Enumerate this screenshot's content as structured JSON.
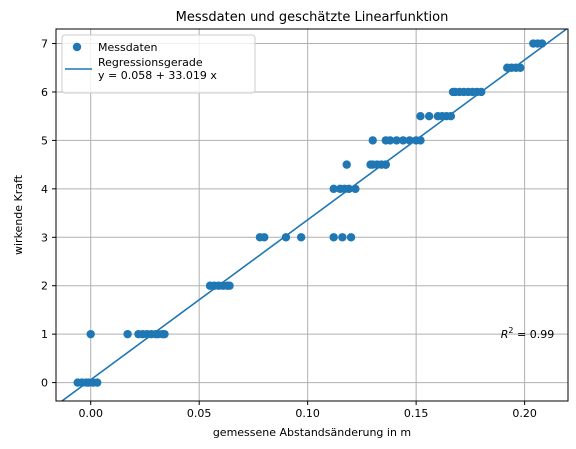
{
  "chart_data": {
    "type": "scatter",
    "title": "Messdaten und geschätzte Linearfunktion",
    "xlabel": "gemessene Abstandsänderung in m",
    "ylabel": "wirkende Kraft",
    "xlim": [
      -0.016,
      0.22
    ],
    "ylim": [
      -0.38,
      7.3
    ],
    "xticks": [
      0.0,
      0.05,
      0.1,
      0.15,
      0.2
    ],
    "xtick_labels": [
      "0.00",
      "0.05",
      "0.10",
      "0.15",
      "0.20"
    ],
    "yticks": [
      0,
      1,
      2,
      3,
      4,
      5,
      6,
      7
    ],
    "ytick_labels": [
      "0",
      "1",
      "2",
      "3",
      "4",
      "5",
      "6",
      "7"
    ],
    "grid": true,
    "legend_position": "top-left",
    "colors": {
      "series": "#1f77b4"
    },
    "series": [
      {
        "name": "Messdaten",
        "kind": "points",
        "x": [
          -0.006,
          -0.004,
          -0.002,
          -0.001,
          0.001,
          0.003,
          0.0,
          0.017,
          0.022,
          0.024,
          0.026,
          0.028,
          0.03,
          0.031,
          0.033,
          0.034,
          0.055,
          0.057,
          0.059,
          0.061,
          0.063,
          0.064,
          0.078,
          0.08,
          0.09,
          0.097,
          0.112,
          0.116,
          0.12,
          0.112,
          0.115,
          0.117,
          0.119,
          0.122,
          0.118,
          0.129,
          0.13,
          0.132,
          0.134,
          0.136,
          0.13,
          0.136,
          0.138,
          0.141,
          0.144,
          0.147,
          0.15,
          0.152,
          0.136,
          0.152,
          0.156,
          0.16,
          0.162,
          0.164,
          0.166,
          0.167,
          0.168,
          0.17,
          0.172,
          0.174,
          0.176,
          0.178,
          0.18,
          0.192,
          0.194,
          0.196,
          0.198,
          0.204,
          0.206,
          0.208
        ],
        "y": [
          0,
          0,
          0,
          0,
          0,
          0,
          1,
          1,
          1,
          1,
          1,
          1,
          1,
          1,
          1,
          1,
          2,
          2,
          2,
          2,
          2,
          2,
          3,
          3,
          3,
          3,
          3,
          3,
          3,
          4,
          4,
          4,
          4,
          4,
          4.5,
          4.5,
          4.5,
          4.5,
          4.5,
          4.5,
          5,
          5,
          5,
          5,
          5,
          5,
          5,
          5,
          4.5,
          5.5,
          5.5,
          5.5,
          5.5,
          5.5,
          5.5,
          6,
          6,
          6,
          6,
          6,
          6,
          6,
          6,
          6.5,
          6.5,
          6.5,
          6.5,
          7,
          7,
          7
        ]
      },
      {
        "name": "Regressionsgerade\ny = 0.058 + 33.019 x",
        "kind": "line",
        "intercept": 0.058,
        "slope": 33.019
      }
    ],
    "annotation": {
      "text_prefix": "R",
      "text_sup": "2",
      "text_suffix": " = 0.99",
      "x": 0.189,
      "y": 1.0
    }
  }
}
